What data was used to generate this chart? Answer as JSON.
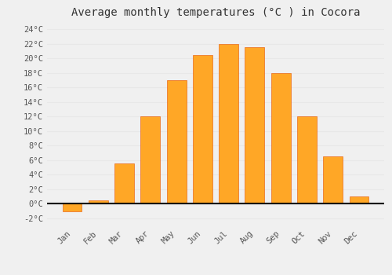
{
  "title": "Average monthly temperatures (°C ) in Cocora",
  "months": [
    "Jan",
    "Feb",
    "Mar",
    "Apr",
    "May",
    "Jun",
    "Jul",
    "Aug",
    "Sep",
    "Oct",
    "Nov",
    "Dec"
  ],
  "values": [
    -1.0,
    0.5,
    5.5,
    12.0,
    17.0,
    20.5,
    22.0,
    21.5,
    18.0,
    12.0,
    6.5,
    1.0
  ],
  "bar_color": "#FFA726",
  "bar_edge_color": "#E65100",
  "ylim": [
    -3,
    25
  ],
  "yticks": [
    0,
    2,
    4,
    6,
    8,
    10,
    12,
    14,
    16,
    18,
    20,
    22,
    24
  ],
  "background_color": "#f0f0f0",
  "grid_color": "#e8e8e8",
  "title_fontsize": 10,
  "tick_fontsize": 7.5,
  "font_family": "monospace",
  "bar_width": 0.75
}
